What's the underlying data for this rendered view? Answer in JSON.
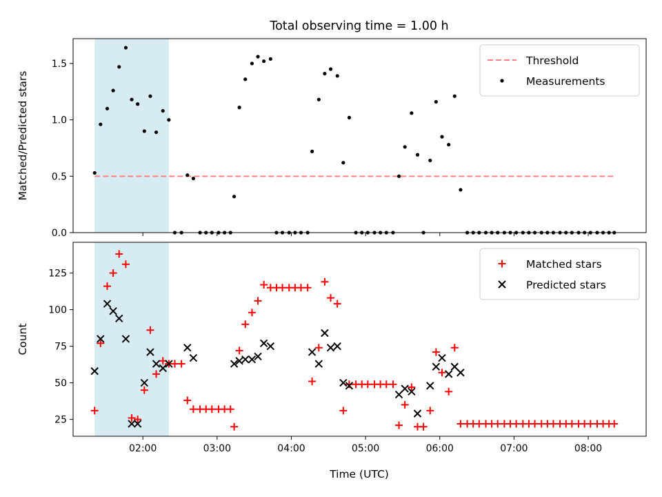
{
  "chart_data": {
    "title": "Total observing time = 1.00 h",
    "xlabel": "Time (UTC)",
    "x_unit": "hours UTC",
    "xlim": [
      1.06,
      8.78
    ],
    "x_ticks": [
      {
        "value": 2,
        "label": "02:00"
      },
      {
        "value": 3,
        "label": "03:00"
      },
      {
        "value": 4,
        "label": "04:00"
      },
      {
        "value": 5,
        "label": "05:00"
      },
      {
        "value": 6,
        "label": "06:00"
      },
      {
        "value": 7,
        "label": "07:00"
      },
      {
        "value": 8,
        "label": "08:00"
      }
    ],
    "shaded_span": {
      "x": [
        1.35,
        2.35
      ],
      "color": "#add8e6"
    },
    "panels": [
      {
        "type": "scatter",
        "ylabel": "Matched/Predicted stars",
        "ylim": [
          0,
          1.72
        ],
        "y_ticks": [
          "0.0",
          "0.5",
          "1.0",
          "1.5"
        ],
        "y_tick_values": [
          0,
          0.5,
          1.0,
          1.5
        ],
        "legend": {
          "placement": "top-right"
        },
        "threshold": {
          "name": "Threshold",
          "value": 0.5,
          "x_range": [
            1.35,
            8.35
          ],
          "color": "#ff7f7f"
        },
        "series": [
          {
            "name": "Measurements",
            "color": "#000000",
            "marker": "dot",
            "points": [
              [
                1.35,
                0.53
              ],
              [
                1.43,
                0.96
              ],
              [
                1.52,
                1.1
              ],
              [
                1.6,
                1.26
              ],
              [
                1.68,
                1.47
              ],
              [
                1.77,
                1.64
              ],
              [
                1.85,
                1.18
              ],
              [
                1.93,
                1.14
              ],
              [
                2.02,
                0.9
              ],
              [
                2.1,
                1.21
              ],
              [
                2.18,
                0.89
              ],
              [
                2.27,
                1.08
              ],
              [
                2.35,
                1.0
              ],
              [
                2.43,
                0.0
              ],
              [
                2.52,
                0.0
              ],
              [
                2.6,
                0.51
              ],
              [
                2.68,
                0.48
              ],
              [
                2.77,
                0.0
              ],
              [
                2.85,
                0.0
              ],
              [
                2.93,
                0.0
              ],
              [
                3.02,
                0.0
              ],
              [
                3.1,
                0.0
              ],
              [
                3.18,
                0.0
              ],
              [
                3.23,
                0.32
              ],
              [
                3.3,
                1.11
              ],
              [
                3.38,
                1.36
              ],
              [
                3.47,
                1.5
              ],
              [
                3.55,
                1.56
              ],
              [
                3.63,
                1.52
              ],
              [
                3.72,
                1.54
              ],
              [
                3.8,
                0.0
              ],
              [
                3.88,
                0.0
              ],
              [
                3.97,
                0.0
              ],
              [
                4.05,
                0.0
              ],
              [
                4.13,
                0.0
              ],
              [
                4.22,
                0.0
              ],
              [
                4.28,
                0.72
              ],
              [
                4.37,
                1.18
              ],
              [
                4.45,
                1.41
              ],
              [
                4.53,
                1.45
              ],
              [
                4.62,
                1.39
              ],
              [
                4.7,
                0.62
              ],
              [
                4.78,
                1.02
              ],
              [
                4.87,
                0.0
              ],
              [
                4.95,
                0.0
              ],
              [
                5.03,
                0.0
              ],
              [
                5.12,
                0.0
              ],
              [
                5.2,
                0.0
              ],
              [
                5.28,
                0.0
              ],
              [
                5.37,
                0.0
              ],
              [
                5.45,
                0.5
              ],
              [
                5.53,
                0.76
              ],
              [
                5.62,
                1.06
              ],
              [
                5.7,
                0.69
              ],
              [
                5.78,
                0.0
              ],
              [
                5.87,
                0.64
              ],
              [
                5.95,
                1.16
              ],
              [
                6.03,
                0.85
              ],
              [
                6.12,
                0.78
              ],
              [
                6.2,
                1.21
              ],
              [
                6.28,
                0.38
              ],
              [
                6.37,
                0.0
              ],
              [
                6.45,
                0.0
              ],
              [
                6.53,
                0.0
              ],
              [
                6.62,
                0.0
              ],
              [
                6.7,
                0.0
              ],
              [
                6.78,
                0.0
              ],
              [
                6.87,
                0.0
              ],
              [
                6.95,
                0.0
              ],
              [
                7.03,
                0.0
              ],
              [
                7.12,
                0.0
              ],
              [
                7.2,
                0.0
              ],
              [
                7.28,
                0.0
              ],
              [
                7.37,
                0.0
              ],
              [
                7.45,
                0.0
              ],
              [
                7.53,
                0.0
              ],
              [
                7.62,
                0.0
              ],
              [
                7.7,
                0.0
              ],
              [
                7.78,
                0.0
              ],
              [
                7.87,
                0.0
              ],
              [
                7.95,
                0.0
              ],
              [
                8.03,
                0.0
              ],
              [
                8.12,
                0.0
              ],
              [
                8.2,
                0.0
              ],
              [
                8.28,
                0.0
              ],
              [
                8.35,
                0.0
              ]
            ]
          }
        ]
      },
      {
        "type": "scatter",
        "ylabel": "Count",
        "ylim": [
          13.5,
          146
        ],
        "y_ticks": [
          "25",
          "50",
          "75",
          "100",
          "125"
        ],
        "y_tick_values": [
          25,
          50,
          75,
          100,
          125
        ],
        "legend": {
          "placement": "top-right"
        },
        "series": [
          {
            "name": "Matched stars",
            "color": "#ff0000",
            "marker": "plus",
            "points": [
              [
                1.35,
                31
              ],
              [
                1.43,
                77
              ],
              [
                1.52,
                116
              ],
              [
                1.6,
                125
              ],
              [
                1.68,
                138
              ],
              [
                1.77,
                131
              ],
              [
                1.85,
                26
              ],
              [
                1.93,
                25
              ],
              [
                2.02,
                45
              ],
              [
                2.1,
                86
              ],
              [
                2.18,
                56
              ],
              [
                2.27,
                65
              ],
              [
                2.35,
                63
              ],
              [
                2.43,
                63
              ],
              [
                2.52,
                63
              ],
              [
                2.6,
                38
              ],
              [
                2.68,
                32
              ],
              [
                2.77,
                32
              ],
              [
                2.85,
                32
              ],
              [
                2.93,
                32
              ],
              [
                3.02,
                32
              ],
              [
                3.1,
                32
              ],
              [
                3.18,
                32
              ],
              [
                3.23,
                20
              ],
              [
                3.3,
                72
              ],
              [
                3.38,
                90
              ],
              [
                3.47,
                98
              ],
              [
                3.55,
                106
              ],
              [
                3.63,
                117
              ],
              [
                3.72,
                115
              ],
              [
                3.8,
                115
              ],
              [
                3.88,
                115
              ],
              [
                3.97,
                115
              ],
              [
                4.05,
                115
              ],
              [
                4.13,
                115
              ],
              [
                4.22,
                115
              ],
              [
                4.28,
                51
              ],
              [
                4.37,
                74
              ],
              [
                4.45,
                119
              ],
              [
                4.53,
                108
              ],
              [
                4.62,
                104
              ],
              [
                4.7,
                31
              ],
              [
                4.78,
                49
              ],
              [
                4.87,
                49
              ],
              [
                4.95,
                49
              ],
              [
                5.03,
                49
              ],
              [
                5.12,
                49
              ],
              [
                5.2,
                49
              ],
              [
                5.28,
                49
              ],
              [
                5.37,
                49
              ],
              [
                5.45,
                21
              ],
              [
                5.53,
                35
              ],
              [
                5.62,
                47
              ],
              [
                5.7,
                20
              ],
              [
                5.78,
                20
              ],
              [
                5.87,
                31
              ],
              [
                5.95,
                71
              ],
              [
                6.03,
                57
              ],
              [
                6.12,
                44
              ],
              [
                6.2,
                74
              ],
              [
                6.28,
                22
              ],
              [
                6.37,
                22
              ],
              [
                6.45,
                22
              ],
              [
                6.53,
                22
              ],
              [
                6.62,
                22
              ],
              [
                6.7,
                22
              ],
              [
                6.78,
                22
              ],
              [
                6.87,
                22
              ],
              [
                6.95,
                22
              ],
              [
                7.03,
                22
              ],
              [
                7.12,
                22
              ],
              [
                7.2,
                22
              ],
              [
                7.28,
                22
              ],
              [
                7.37,
                22
              ],
              [
                7.45,
                22
              ],
              [
                7.53,
                22
              ],
              [
                7.62,
                22
              ],
              [
                7.7,
                22
              ],
              [
                7.78,
                22
              ],
              [
                7.87,
                22
              ],
              [
                7.95,
                22
              ],
              [
                8.03,
                22
              ],
              [
                8.12,
                22
              ],
              [
                8.2,
                22
              ],
              [
                8.28,
                22
              ],
              [
                8.35,
                22
              ]
            ]
          },
          {
            "name": "Predicted stars",
            "color": "#000000",
            "marker": "x",
            "points": [
              [
                1.35,
                58
              ],
              [
                1.43,
                80
              ],
              [
                1.52,
                104
              ],
              [
                1.6,
                99
              ],
              [
                1.68,
                94
              ],
              [
                1.77,
                80
              ],
              [
                1.85,
                22
              ],
              [
                1.93,
                22
              ],
              [
                2.02,
                50
              ],
              [
                2.1,
                71
              ],
              [
                2.18,
                63
              ],
              [
                2.27,
                60
              ],
              [
                2.35,
                63
              ],
              [
                2.6,
                74
              ],
              [
                2.68,
                67
              ],
              [
                3.23,
                63
              ],
              [
                3.3,
                65
              ],
              [
                3.38,
                66
              ],
              [
                3.47,
                66
              ],
              [
                3.55,
                68
              ],
              [
                3.63,
                77
              ],
              [
                3.72,
                75
              ],
              [
                4.28,
                71
              ],
              [
                4.37,
                63
              ],
              [
                4.45,
                84
              ],
              [
                4.53,
                74
              ],
              [
                4.62,
                75
              ],
              [
                4.7,
                50
              ],
              [
                4.78,
                48
              ],
              [
                5.45,
                42
              ],
              [
                5.53,
                46
              ],
              [
                5.62,
                44
              ],
              [
                5.7,
                29
              ],
              [
                5.87,
                48
              ],
              [
                5.95,
                61
              ],
              [
                6.03,
                67
              ],
              [
                6.12,
                56
              ],
              [
                6.2,
                61
              ],
              [
                6.28,
                57
              ]
            ]
          }
        ]
      }
    ]
  }
}
